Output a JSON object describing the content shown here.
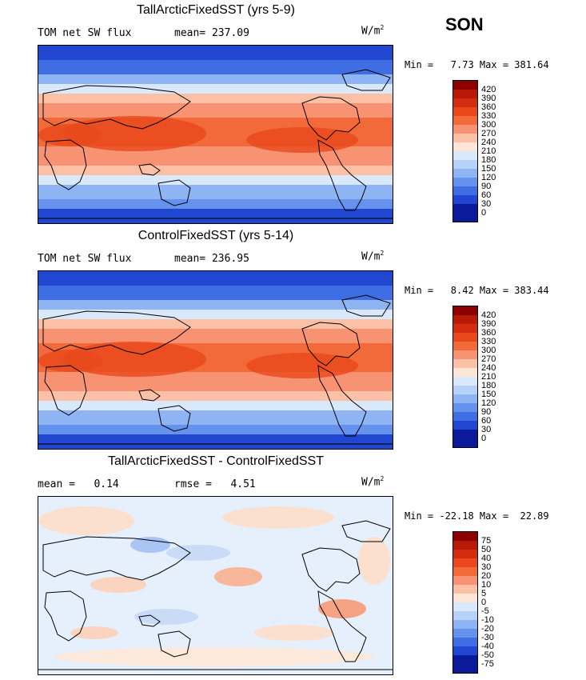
{
  "season": "SON",
  "units": "W/m",
  "units_exp": "2",
  "panels": [
    {
      "title": "TallArcticFixedSST (yrs 5-9)",
      "field": "TOM net SW flux",
      "stat_text": "mean= 237.09",
      "minmax": "Min =   7.73 Max = 381.64",
      "levels": [
        "420",
        "390",
        "360",
        "330",
        "300",
        "270",
        "240",
        "210",
        "180",
        "150",
        "120",
        "90",
        "60",
        "30",
        "0"
      ]
    },
    {
      "title": "ControlFixedSST (yrs 5-14)",
      "field": "TOM net SW flux",
      "stat_text": "mean= 236.95",
      "minmax": "Min =   8.42 Max = 383.44",
      "levels": [
        "420",
        "390",
        "360",
        "330",
        "300",
        "270",
        "240",
        "210",
        "180",
        "150",
        "120",
        "90",
        "60",
        "30",
        "0"
      ]
    },
    {
      "title": "TallArcticFixedSST - ControlFixedSST",
      "field": "mean =   0.14",
      "stat_text": "rmse =   4.51",
      "minmax": "Min = -22.18 Max =  22.89",
      "levels": [
        "75",
        "50",
        "40",
        "30",
        "20",
        "10",
        "5",
        "0",
        "-5",
        "-10",
        "-20",
        "-30",
        "-40",
        "-50",
        "-75"
      ]
    }
  ],
  "colors": [
    "#8c0000",
    "#b71a07",
    "#d42c0e",
    "#e8481c",
    "#f26a3a",
    "#f79373",
    "#fbc0a6",
    "#fde5d7",
    "#dae8fb",
    "#b7d2f8",
    "#8fb4f3",
    "#6492ec",
    "#3f6ee4",
    "#2146cf",
    "#0a1a9a"
  ],
  "chart_data": [
    {
      "type": "heatmap",
      "title": "TallArcticFixedSST (yrs 5-9)",
      "subtitle": "TOM net SW flux",
      "mean": 237.09,
      "min": 7.73,
      "max": 381.64,
      "units": "W/m2",
      "colorbar_levels": [
        0,
        30,
        60,
        90,
        120,
        150,
        180,
        210,
        240,
        270,
        300,
        330,
        360,
        390,
        420
      ]
    },
    {
      "type": "heatmap",
      "title": "ControlFixedSST (yrs 5-14)",
      "subtitle": "TOM net SW flux",
      "mean": 236.95,
      "min": 8.42,
      "max": 383.44,
      "units": "W/m2",
      "colorbar_levels": [
        0,
        30,
        60,
        90,
        120,
        150,
        180,
        210,
        240,
        270,
        300,
        330,
        360,
        390,
        420
      ]
    },
    {
      "type": "heatmap",
      "title": "TallArcticFixedSST - ControlFixedSST",
      "mean": 0.14,
      "rmse": 4.51,
      "min": -22.18,
      "max": 22.89,
      "units": "W/m2",
      "colorbar_levels": [
        -75,
        -50,
        -40,
        -30,
        -20,
        -10,
        -5,
        0,
        5,
        10,
        20,
        30,
        40,
        50,
        75
      ]
    }
  ]
}
